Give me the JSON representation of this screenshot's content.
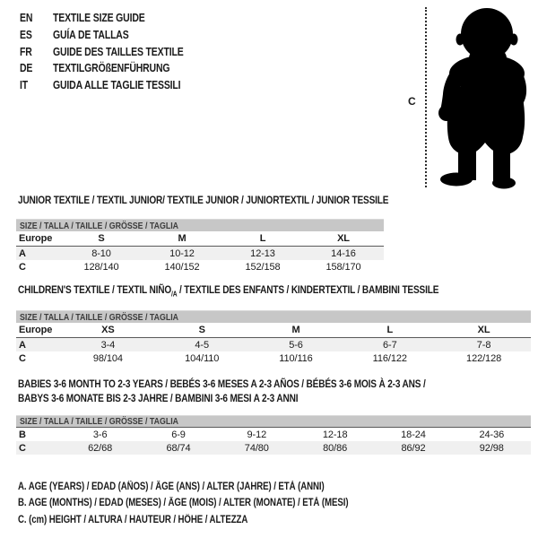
{
  "colors": {
    "ink": "#1a1a1a",
    "bar_bg": "#c7c7c7",
    "bar_text": "#3c3c3c",
    "alt_row_bg": "#f0f0f0",
    "divider": "#5a5a5a",
    "silhouette": "#000000"
  },
  "language_guide": {
    "items": [
      {
        "code": "EN",
        "label": "TEXTILE SIZE GUIDE"
      },
      {
        "code": "ES",
        "label": "GUÍA DE TALLAS"
      },
      {
        "code": "FR",
        "label": "GUIDE DES TAILLES TEXTILE"
      },
      {
        "code": "DE",
        "label": "TEXTILGRÖßENFÜHRUNG"
      },
      {
        "code": "IT",
        "label": "GUIDA ALLE TAGLIE TESSILI"
      }
    ]
  },
  "figure": {
    "height_marker_label": "C"
  },
  "tables": [
    {
      "id": "junior",
      "title_lines": [
        [
          {
            "t": "JUNIOR TEXTILE / TEXTIL JUNIOR/ TEXTILE JUNIOR / JUNIORTEXTIL / JUNIOR TESSILE"
          }
        ]
      ],
      "size_header": "SIZE / TALLA / TAILLE / GRÖSSE / TAGLIA",
      "bar_dark_underline": false,
      "rows": [
        {
          "label": "Europe",
          "style": "size-row",
          "cells": [
            "S",
            "M",
            "L",
            "XL"
          ]
        },
        {
          "label": "A",
          "style": "alt",
          "cells": [
            "8-10",
            "10-12",
            "12-13",
            "14-16"
          ]
        },
        {
          "label": "C",
          "style": "",
          "cells": [
            "128/140",
            "140/152",
            "152/158",
            "158/170"
          ]
        }
      ]
    },
    {
      "id": "children",
      "title_lines": [
        [
          {
            "t": "CHILDREN'S TEXTILE / TEXTIL NIÑO"
          },
          {
            "t": "/A",
            "sub": true
          },
          {
            "t": " / TEXTILE DES ENFANTS / KINDERTEXTIL / BAMBINI TESSILE"
          }
        ]
      ],
      "size_header": "SIZE / TALLA / TAILLE / GRÖSSE / TAGLIA",
      "bar_dark_underline": false,
      "rows": [
        {
          "label": "Europe",
          "style": "size-row",
          "cells": [
            "XS",
            "S",
            "M",
            "L",
            "XL"
          ]
        },
        {
          "label": "A",
          "style": "alt",
          "cells": [
            "3-4",
            "4-5",
            "5-6",
            "6-7",
            "7-8"
          ]
        },
        {
          "label": "C",
          "style": "",
          "cells": [
            "98/104",
            "104/110",
            "110/116",
            "116/122",
            "122/128"
          ]
        }
      ]
    },
    {
      "id": "babies",
      "title_lines": [
        [
          {
            "t": "BABIES 3-6 MONTH TO 2-3 YEARS / BEBÉS 3-6 MESES A 2-3 AÑOS / BÉBÉS 3-6 MOIS À 2-3 ANS /"
          }
        ],
        [
          {
            "t": "BABYS 3-6 MONATE BIS 2-3 JAHRE / BAMBINI 3-6 MESI A 2-3 ANNI"
          }
        ]
      ],
      "size_header": "SIZE / TALLA / TAILLE / GRÖSSE / TAGLIA",
      "bar_dark_underline": true,
      "rows": [
        {
          "label": "B",
          "style": "",
          "cells": [
            "3-6",
            "6-9",
            "9-12",
            "12-18",
            "18-24",
            "24-36"
          ]
        },
        {
          "label": "C",
          "style": "alt",
          "cells": [
            "62/68",
            "68/74",
            "74/80",
            "80/86",
            "86/92",
            "92/98"
          ]
        }
      ]
    }
  ],
  "footnotes": [
    "A. AGE (YEARS) / EDAD (AÑOS) / ÂGE (ANS) / ALTER (JAHRE) / ETÀ (ANNI)",
    "B. AGE (MONTHS) / EDAD (MESES) / ÂGE (MOIS) / ALTER (MONATE) / ETÀ (MESI)",
    "C. (cm) HEIGHT / ALTURA / HAUTEUR / HÖHE / ALTEZZA"
  ]
}
